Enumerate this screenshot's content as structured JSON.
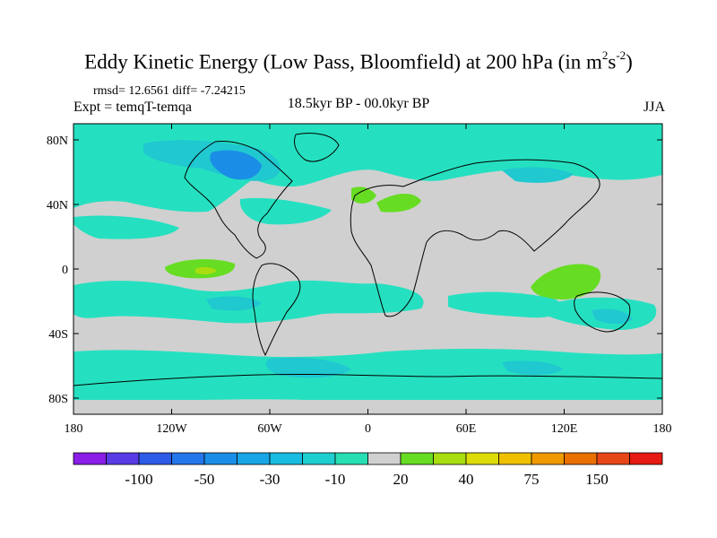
{
  "title": {
    "prefix": "Eddy Kinetic Energy (Low Pass, Bloomfield) at 200 hPa (in m",
    "sup1": "2",
    "middle": "s",
    "sup2": "-2",
    "suffix": ")"
  },
  "stats": "rmsd= 12.6561 diff= -7.24215",
  "experiment": "Expt = temqT-temqa",
  "period": "18.5kyr BP - 00.0kyr BP",
  "season": "JJA",
  "map": {
    "projection": "cylindrical-equidistant",
    "lon_range": [
      -180,
      180
    ],
    "lat_range": [
      -90,
      90
    ],
    "lon_ticks": [
      {
        "value": -180,
        "label": "180"
      },
      {
        "value": -120,
        "label": "120W"
      },
      {
        "value": -60,
        "label": "60W"
      },
      {
        "value": 0,
        "label": "0"
      },
      {
        "value": 60,
        "label": "60E"
      },
      {
        "value": 120,
        "label": "120E"
      },
      {
        "value": 180,
        "label": "180"
      }
    ],
    "lat_ticks": [
      {
        "value": 80,
        "label": "80N"
      },
      {
        "value": 40,
        "label": "40N"
      },
      {
        "value": 0,
        "label": "0"
      },
      {
        "value": -40,
        "label": "40S"
      },
      {
        "value": -80,
        "label": "80S"
      }
    ],
    "colors": {
      "neutral": "#d0d0d0",
      "light_teal": "#25e0c0",
      "teal": "#20c8d0",
      "cyan": "#18b4e0",
      "blue": "#1a8ee6",
      "green": "#66dd22",
      "yellow_green": "#aadd10",
      "coast": "#000000"
    }
  },
  "colorbar": {
    "colors": [
      "#8a1ee6",
      "#5a3ce6",
      "#2e5ae8",
      "#2476ea",
      "#1a8ee6",
      "#18a6e6",
      "#18bce0",
      "#1ecfd0",
      "#28dfb4",
      "#d0d0d0",
      "#66dd22",
      "#a8dd10",
      "#dcdc08",
      "#f0c000",
      "#f09a00",
      "#ea7000",
      "#e64618",
      "#e61a12"
    ],
    "labels": [
      {
        "after_box": 2,
        "text": "-100"
      },
      {
        "after_box": 4,
        "text": "-50"
      },
      {
        "after_box": 6,
        "text": "-30"
      },
      {
        "after_box": 8,
        "text": "-10"
      },
      {
        "after_box": 10,
        "text": "20"
      },
      {
        "after_box": 12,
        "text": "40"
      },
      {
        "after_box": 14,
        "text": "75"
      },
      {
        "after_box": 16,
        "text": "150"
      }
    ]
  }
}
